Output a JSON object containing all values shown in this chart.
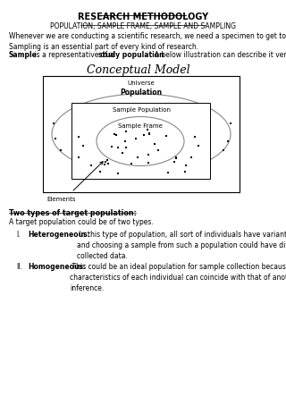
{
  "title": "RESEARCH METHODOLOGY",
  "subtitle": "POPULATION, SAMPLE FRAME, SAMPLE AND SAMPLING",
  "intro_text": "Whenever we are conducting a scientific research, we need a specimen to get to know facts.\nSampling is an essential part of every kind of research.",
  "sample_bold": "Sample",
  "sample_mid": " is a representative of a ",
  "sample_bold2": "study population",
  "sample_end": ". A below illustration can describe it very well:",
  "conceptual_model_title": "Conceptual Model",
  "lbl_universe": "Universe",
  "lbl_population": "Population",
  "lbl_sample_population": "Sample Population",
  "lbl_sample_frame": "Sample Frame",
  "lbl_elements": "Elements",
  "two_types_heading": "Two types of target population:",
  "two_types_intro": "A target population could be of two types.",
  "heterogeneous_label": "Heterogeneous:",
  "heterogeneous_text": " In this type of population, all sort of individuals have variant characteristics\nand choosing a sample from such a population could have differing inference with the\ncollected data.",
  "homogeneous_label": "Homogeneous:",
  "homogeneous_text": " This could be an ideal population for sample collection because\ncharacteristics of each individual can coincide with that of another. This makes a relative\ninference.",
  "bg_color": "#ffffff",
  "text_color": "#000000",
  "font_size_title": 7,
  "font_size_body": 5.5,
  "font_size_diagram": 5,
  "font_size_conceptual": 9
}
